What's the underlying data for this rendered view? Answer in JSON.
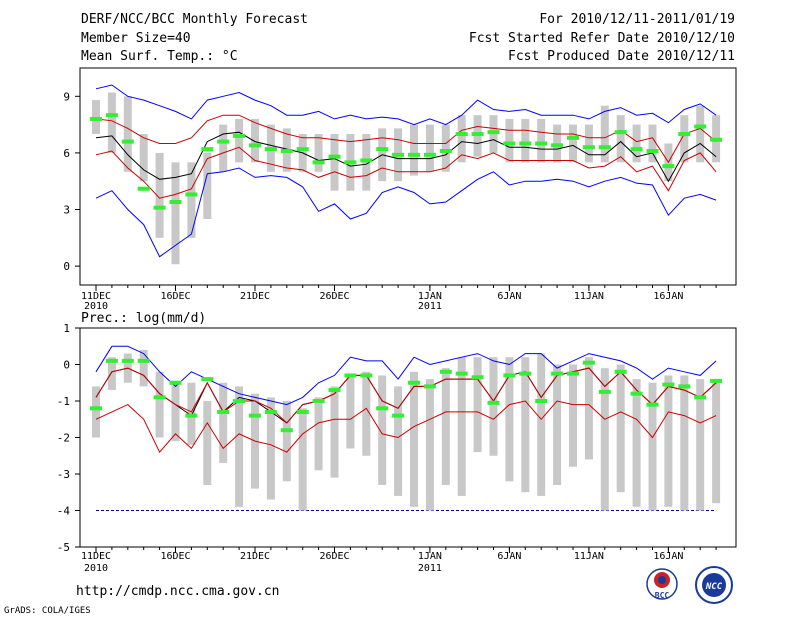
{
  "header": {
    "title": "DERF/NCC/BCC Monthly Forecast",
    "member_size": "Member Size=40",
    "variable": "Mean Surf. Temp.: °C",
    "period": "For 2010/12/11-2011/01/19",
    "started": "Fcst Started Refer Date 2010/12/10",
    "produced": "Fcst Produced Date 2010/12/11"
  },
  "footer": {
    "url": "http://cmdp.ncc.cma.gov.cn",
    "grads": "GrADS: COLA/IGES",
    "logo_bcc": "BCC",
    "logo_ncc": "NCC"
  },
  "colors": {
    "frame": "#000000",
    "max_line": "#0000ff",
    "band_line": "#cc0000",
    "mean_line": "#000000",
    "bar": "#c8c8c8",
    "obs_marker": "#33ee33",
    "dashed": "#0000aa"
  },
  "chart_data": [
    {
      "type": "line",
      "title": "Mean Surf. Temp.: °C",
      "xlabel": "",
      "ylabel": "°C",
      "ylim": [
        -1.0,
        10.5
      ],
      "yticks": [
        0,
        3,
        6,
        9
      ],
      "x_ticks": [
        {
          "day": 1,
          "label": "11DEC",
          "sub": "2010"
        },
        {
          "day": 6,
          "label": "16DEC",
          "sub": ""
        },
        {
          "day": 11,
          "label": "21DEC",
          "sub": ""
        },
        {
          "day": 16,
          "label": "26DEC",
          "sub": ""
        },
        {
          "day": 22,
          "label": "1JAN",
          "sub": "2011"
        },
        {
          "day": 27,
          "label": "6JAN",
          "sub": ""
        },
        {
          "day": 32,
          "label": "11JAN",
          "sub": ""
        },
        {
          "day": 37,
          "label": "16JAN",
          "sub": ""
        }
      ],
      "x": [
        1,
        2,
        3,
        4,
        5,
        6,
        7,
        8,
        9,
        10,
        11,
        12,
        13,
        14,
        15,
        16,
        17,
        18,
        19,
        20,
        21,
        22,
        23,
        24,
        25,
        26,
        27,
        28,
        29,
        30,
        31,
        32,
        33,
        34,
        35,
        36,
        37,
        38,
        39,
        40
      ],
      "bar_low": [
        7.0,
        6.0,
        5.0,
        4.5,
        1.5,
        0.1,
        1.5,
        2.5,
        5.0,
        5.5,
        5.5,
        5.0,
        5.0,
        5.0,
        5.0,
        4.0,
        4.0,
        4.0,
        4.5,
        4.5,
        4.8,
        5.0,
        5.0,
        5.5,
        5.8,
        6.0,
        5.5,
        5.5,
        5.5,
        5.5,
        5.5,
        5.5,
        5.5,
        5.5,
        5.5,
        5.5,
        4.5,
        5.5,
        5.5,
        5.5
      ],
      "bar_high": [
        8.8,
        9.2,
        9.0,
        7.0,
        6.0,
        5.5,
        5.5,
        6.0,
        7.5,
        7.8,
        7.8,
        7.5,
        7.3,
        7.0,
        7.0,
        7.0,
        7.0,
        7.0,
        7.3,
        7.3,
        7.5,
        7.5,
        7.5,
        8.0,
        8.0,
        8.0,
        7.8,
        7.8,
        7.8,
        7.5,
        7.5,
        7.5,
        8.5,
        8.0,
        7.5,
        7.5,
        6.5,
        8.0,
        8.5,
        8.0
      ],
      "obs": [
        7.8,
        8.0,
        6.6,
        4.1,
        3.1,
        3.4,
        3.8,
        6.2,
        6.6,
        6.9,
        6.4,
        6.2,
        6.1,
        6.2,
        5.5,
        5.8,
        5.5,
        5.6,
        6.2,
        5.9,
        5.9,
        5.9,
        6.1,
        7.0,
        7.0,
        7.1,
        6.5,
        6.5,
        6.5,
        6.4,
        6.8,
        6.3,
        6.3,
        7.1,
        6.2,
        6.1,
        5.3,
        7.0,
        7.4,
        6.7
      ],
      "series": [
        {
          "name": "max",
          "color": "#0000ff",
          "values": [
            9.4,
            9.6,
            9.0,
            8.8,
            8.5,
            8.2,
            7.8,
            8.8,
            9.0,
            9.2,
            8.8,
            8.5,
            8.0,
            8.0,
            8.2,
            7.8,
            8.0,
            7.8,
            7.9,
            7.8,
            7.5,
            7.8,
            7.5,
            8.0,
            8.8,
            8.3,
            8.2,
            8.3,
            8.0,
            8.0,
            8.0,
            7.8,
            8.2,
            8.4,
            8.0,
            8.1,
            7.6,
            8.3,
            8.6,
            8.0
          ]
        },
        {
          "name": "upper",
          "color": "#cc0000",
          "values": [
            7.8,
            7.7,
            7.3,
            6.8,
            6.5,
            6.5,
            6.8,
            7.7,
            8.0,
            8.0,
            7.6,
            7.3,
            7.0,
            6.8,
            6.8,
            6.7,
            6.6,
            6.7,
            6.8,
            6.7,
            6.5,
            6.5,
            6.5,
            7.2,
            7.4,
            7.3,
            7.2,
            7.2,
            7.1,
            7.0,
            7.0,
            6.8,
            6.8,
            7.2,
            6.6,
            6.8,
            5.5,
            7.0,
            7.3,
            6.6
          ]
        },
        {
          "name": "mean",
          "color": "#000000",
          "values": [
            6.8,
            6.9,
            5.9,
            5.1,
            4.6,
            4.7,
            4.9,
            6.6,
            7.0,
            7.1,
            6.6,
            6.4,
            6.2,
            6.0,
            5.6,
            5.7,
            5.3,
            5.4,
            5.9,
            5.7,
            5.7,
            5.7,
            5.9,
            6.6,
            6.5,
            6.7,
            6.3,
            6.3,
            6.2,
            6.2,
            6.4,
            5.9,
            5.9,
            6.6,
            5.8,
            6.0,
            4.5,
            6.0,
            6.5,
            5.8
          ]
        },
        {
          "name": "lower",
          "color": "#cc0000",
          "values": [
            5.9,
            6.1,
            5.2,
            4.5,
            3.6,
            3.8,
            4.1,
            5.7,
            6.0,
            6.3,
            5.6,
            5.4,
            5.2,
            5.1,
            4.7,
            5.0,
            4.7,
            4.8,
            5.2,
            5.0,
            5.0,
            5.0,
            5.2,
            5.9,
            5.7,
            6.0,
            5.6,
            5.6,
            5.6,
            5.6,
            5.6,
            5.2,
            5.3,
            5.8,
            5.0,
            5.3,
            4.0,
            5.6,
            6.0,
            5.0
          ]
        },
        {
          "name": "min",
          "color": "#0000ff",
          "values": [
            3.6,
            4.0,
            3.0,
            2.2,
            0.5,
            1.1,
            1.7,
            4.9,
            5.0,
            5.2,
            4.7,
            4.8,
            4.7,
            4.2,
            2.9,
            3.3,
            2.5,
            2.8,
            3.9,
            4.2,
            3.9,
            3.3,
            3.4,
            4.0,
            4.6,
            5.0,
            4.3,
            4.5,
            4.5,
            4.6,
            4.5,
            4.2,
            4.5,
            4.7,
            4.4,
            4.3,
            2.7,
            3.6,
            3.8,
            3.5
          ]
        }
      ]
    },
    {
      "type": "line",
      "title": "Prec.: log(mm/d)",
      "xlabel": "",
      "ylabel": "log(mm/d)",
      "ylim": [
        -5,
        1
      ],
      "yticks": [
        -5,
        -4,
        -3,
        -2,
        -1,
        0,
        1
      ],
      "x_ticks": [
        {
          "day": 1,
          "label": "11DEC",
          "sub": "2010"
        },
        {
          "day": 6,
          "label": "16DEC",
          "sub": ""
        },
        {
          "day": 11,
          "label": "21DEC",
          "sub": ""
        },
        {
          "day": 16,
          "label": "26DEC",
          "sub": ""
        },
        {
          "day": 22,
          "label": "1JAN",
          "sub": "2011"
        },
        {
          "day": 27,
          "label": "6JAN",
          "sub": ""
        },
        {
          "day": 32,
          "label": "11JAN",
          "sub": ""
        },
        {
          "day": 37,
          "label": "16JAN",
          "sub": ""
        }
      ],
      "x": [
        1,
        2,
        3,
        4,
        5,
        6,
        7,
        8,
        9,
        10,
        11,
        12,
        13,
        14,
        15,
        16,
        17,
        18,
        19,
        20,
        21,
        22,
        23,
        24,
        25,
        26,
        27,
        28,
        29,
        30,
        31,
        32,
        33,
        34,
        35,
        36,
        37,
        38,
        39,
        40
      ],
      "dashed_level": -4,
      "bar_low": [
        -2.0,
        -0.7,
        -0.5,
        -0.6,
        -2.0,
        -2.1,
        -2.2,
        -3.3,
        -2.7,
        -3.9,
        -3.4,
        -3.7,
        -3.2,
        -4.0,
        -2.9,
        -3.1,
        -2.3,
        -2.5,
        -3.3,
        -3.6,
        -3.9,
        -4.0,
        -3.3,
        -3.6,
        -2.4,
        -2.5,
        -3.2,
        -3.5,
        -3.6,
        -3.3,
        -2.8,
        -2.6,
        -4.0,
        -3.5,
        -3.9,
        -4.0,
        -3.9,
        -4.0,
        -4.0,
        -3.8
      ],
      "bar_high": [
        -0.6,
        0.2,
        0.3,
        0.4,
        -0.2,
        -0.5,
        -0.5,
        -1.0,
        -0.5,
        -0.6,
        -0.8,
        -0.9,
        -1.0,
        -1.2,
        -0.9,
        -0.6,
        -0.3,
        -0.2,
        -0.3,
        -0.6,
        -0.2,
        -0.4,
        -0.1,
        0.2,
        0.2,
        0.2,
        0.2,
        0.2,
        0.3,
        0.0,
        0.0,
        0.2,
        -0.1,
        0.0,
        -0.4,
        -0.5,
        -0.3,
        -0.3,
        -0.4,
        -0.4
      ],
      "obs": [
        -1.2,
        0.1,
        0.1,
        0.1,
        -0.9,
        -0.5,
        -1.4,
        -0.4,
        -1.3,
        -1.0,
        -1.4,
        -1.3,
        -1.8,
        -1.3,
        -1.0,
        -0.7,
        -0.3,
        -0.3,
        -1.2,
        -1.4,
        -0.5,
        -0.6,
        -0.2,
        -0.25,
        -0.35,
        -1.05,
        -0.3,
        -0.25,
        -1.0,
        -0.25,
        -0.25,
        0.05,
        -0.75,
        -0.2,
        -0.8,
        -1.1,
        -0.55,
        -0.6,
        -0.9,
        -0.45
      ],
      "series": [
        {
          "name": "max",
          "color": "#0000ff",
          "values": [
            -0.2,
            0.5,
            0.5,
            0.3,
            -0.2,
            -0.6,
            -0.2,
            -0.4,
            -0.6,
            -0.8,
            -0.9,
            -1.0,
            -1.1,
            -0.9,
            -0.5,
            -0.3,
            0.2,
            0.1,
            0.1,
            -0.4,
            0.2,
            0.0,
            0.1,
            0.2,
            0.3,
            0.1,
            0.0,
            0.3,
            0.3,
            -0.1,
            0.1,
            0.3,
            0.2,
            0.1,
            -0.1,
            -0.4,
            -0.1,
            -0.2,
            -0.3,
            0.1
          ]
        },
        {
          "name": "mean",
          "color": "#000000",
          "values": [
            -0.9,
            -0.2,
            -0.1,
            -0.3,
            -0.8,
            -1.1,
            -1.4,
            -0.5,
            -1.3,
            -0.9,
            -1.0,
            -1.3,
            -1.6,
            -1.1,
            -1.0,
            -0.8,
            -0.3,
            -0.3,
            -1.0,
            -1.2,
            -0.6,
            -0.6,
            -0.4,
            -0.4,
            -0.4,
            -1.0,
            -0.3,
            -0.2,
            -0.9,
            -0.3,
            -0.2,
            -0.1,
            -0.6,
            -0.2,
            -0.7,
            -1.1,
            -0.6,
            -0.7,
            -0.9,
            -0.5
          ]
        },
        {
          "name": "upper",
          "color": "#cc0000",
          "values": [
            -0.9,
            -0.2,
            -0.1,
            -0.3,
            -0.8,
            -1.1,
            -1.3,
            -0.5,
            -1.3,
            -1.0,
            -1.0,
            -1.2,
            -1.6,
            -1.1,
            -1.0,
            -0.8,
            -0.3,
            -0.3,
            -1.0,
            -1.2,
            -0.6,
            -0.6,
            -0.4,
            -0.4,
            -0.4,
            -1.0,
            -0.3,
            -0.2,
            -0.9,
            -0.3,
            -0.2,
            -0.1,
            -0.6,
            -0.2,
            -0.7,
            -1.1,
            -0.6,
            -0.7,
            -0.9,
            -0.5
          ]
        },
        {
          "name": "lower",
          "color": "#cc0000",
          "values": [
            -1.5,
            -1.3,
            -1.1,
            -1.5,
            -2.4,
            -1.9,
            -2.3,
            -1.6,
            -2.3,
            -1.9,
            -2.1,
            -2.2,
            -2.4,
            -1.9,
            -1.6,
            -1.5,
            -1.5,
            -1.2,
            -1.9,
            -2.0,
            -1.7,
            -1.5,
            -1.3,
            -1.3,
            -1.3,
            -1.5,
            -1.1,
            -1.0,
            -1.5,
            -1.0,
            -1.1,
            -1.1,
            -1.5,
            -1.3,
            -1.5,
            -2.0,
            -1.3,
            -1.4,
            -1.6,
            -1.4
          ]
        }
      ]
    }
  ]
}
